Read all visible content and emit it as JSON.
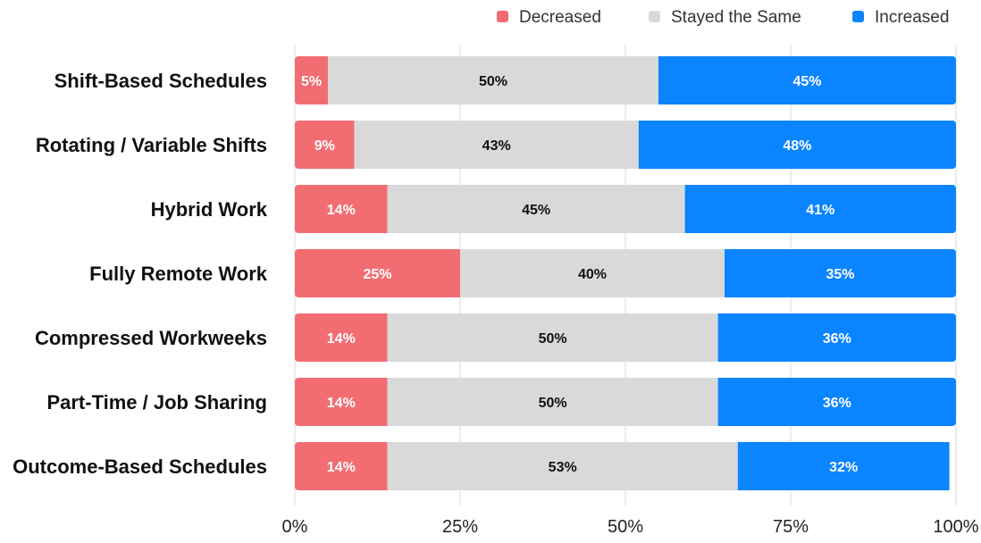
{
  "chart_data": {
    "type": "bar",
    "orientation": "horizontal",
    "stacked": true,
    "title": "",
    "xlabel": "",
    "ylabel": "",
    "xlim": [
      0,
      100
    ],
    "x_ticks": [
      "0%",
      "25%",
      "50%",
      "75%",
      "100%"
    ],
    "grid": true,
    "legend_position": "top-right",
    "categories": [
      "Shift-Based Schedules",
      "Rotating / Variable Shifts",
      "Hybrid Work",
      "Fully Remote Work",
      "Compressed Workweeks",
      "Part-Time / Job Sharing",
      "Outcome-Based Schedules"
    ],
    "series": [
      {
        "name": "Decreased",
        "color": "#F26D72",
        "label_color": "#ffffff",
        "values": [
          5,
          9,
          14,
          25,
          14,
          14,
          14
        ]
      },
      {
        "name": "Stayed the Same",
        "color": "#D9D9D9",
        "label_color": "#111111",
        "values": [
          50,
          43,
          45,
          40,
          50,
          50,
          53
        ]
      },
      {
        "name": "Increased",
        "color": "#0A84FF",
        "label_color": "#ffffff",
        "values": [
          45,
          48,
          41,
          35,
          36,
          36,
          32
        ]
      }
    ]
  }
}
